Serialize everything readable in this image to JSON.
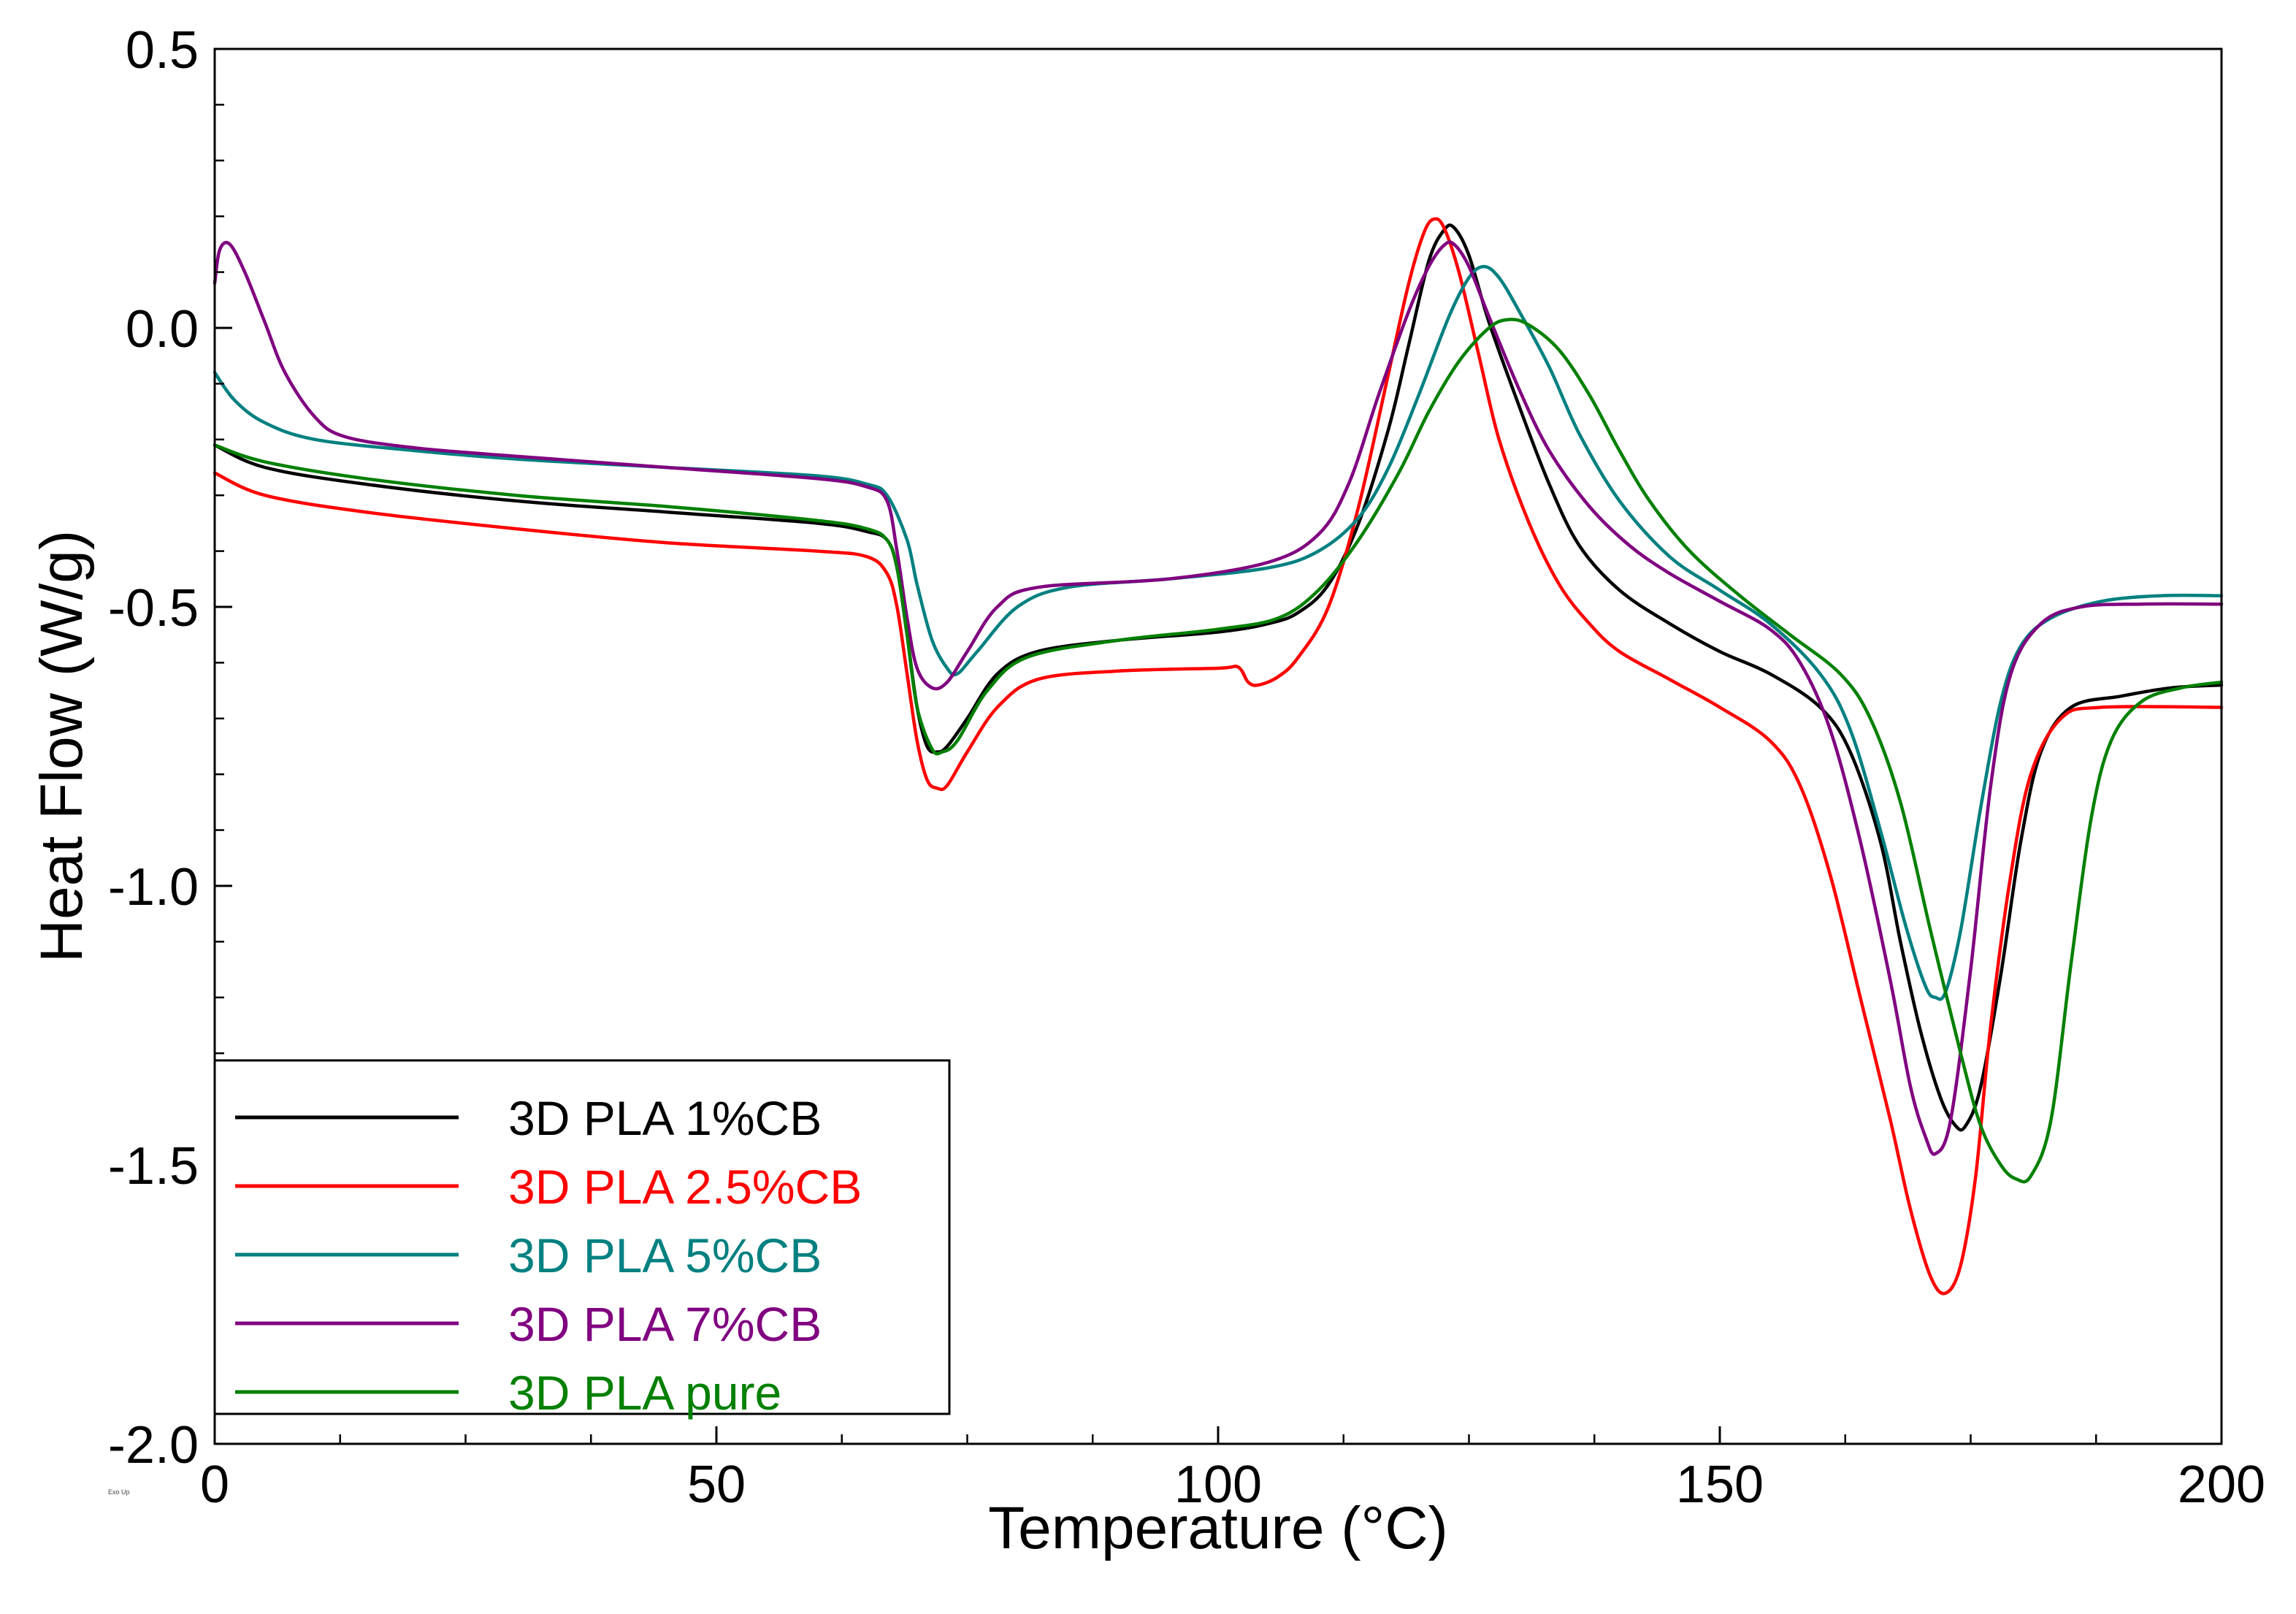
{
  "chart_data": {
    "type": "line",
    "title": "",
    "xlabel": "Temperature (°C)",
    "ylabel": "Heat Flow (W/g)",
    "footer_note": "Exo Up",
    "xlim": [
      0,
      200
    ],
    "ylim": [
      -2.0,
      0.5
    ],
    "xticks": [
      0,
      50,
      100,
      150,
      200
    ],
    "xtick_labels": [
      "0",
      "50",
      "100",
      "150",
      "200"
    ],
    "yticks": [
      0.5,
      0.0,
      -0.5,
      -1.0,
      -1.5,
      -2.0
    ],
    "ytick_labels": [
      "0.5",
      "0.0",
      "-0.5",
      "-1.0",
      "-1.5",
      "-2.0"
    ],
    "legend_position": "bottom-left",
    "series": [
      {
        "name": "3D PLA 1%CB",
        "color": "#000000",
        "points": [
          [
            0,
            -0.21
          ],
          [
            5,
            -0.25
          ],
          [
            15,
            -0.28
          ],
          [
            30,
            -0.31
          ],
          [
            45,
            -0.33
          ],
          [
            60,
            -0.35
          ],
          [
            65,
            -0.365
          ],
          [
            67,
            -0.38
          ],
          [
            68,
            -0.43
          ],
          [
            69,
            -0.55
          ],
          [
            70,
            -0.68
          ],
          [
            71,
            -0.75
          ],
          [
            72,
            -0.76
          ],
          [
            73,
            -0.75
          ],
          [
            75,
            -0.7
          ],
          [
            78,
            -0.62
          ],
          [
            82,
            -0.58
          ],
          [
            90,
            -0.56
          ],
          [
            100,
            -0.545
          ],
          [
            105,
            -0.53
          ],
          [
            108,
            -0.51
          ],
          [
            111,
            -0.46
          ],
          [
            114,
            -0.35
          ],
          [
            117,
            -0.18
          ],
          [
            119,
            -0.03
          ],
          [
            121,
            0.12
          ],
          [
            122.5,
            0.175
          ],
          [
            123.5,
            0.18
          ],
          [
            125,
            0.13
          ],
          [
            127,
            0.01
          ],
          [
            130,
            -0.14
          ],
          [
            133,
            -0.28
          ],
          [
            136,
            -0.39
          ],
          [
            140,
            -0.47
          ],
          [
            145,
            -0.53
          ],
          [
            150,
            -0.58
          ],
          [
            155,
            -0.62
          ],
          [
            160,
            -0.68
          ],
          [
            163,
            -0.76
          ],
          [
            166,
            -0.92
          ],
          [
            168,
            -1.1
          ],
          [
            170,
            -1.26
          ],
          [
            172,
            -1.38
          ],
          [
            173.5,
            -1.43
          ],
          [
            174.5,
            -1.43
          ],
          [
            176,
            -1.36
          ],
          [
            178,
            -1.16
          ],
          [
            180,
            -0.92
          ],
          [
            182,
            -0.76
          ],
          [
            185,
            -0.68
          ],
          [
            190,
            -0.66
          ],
          [
            195,
            -0.645
          ],
          [
            200,
            -0.64
          ]
        ]
      },
      {
        "name": "3D PLA 2.5%CB",
        "color": "#ff0000",
        "points": [
          [
            0,
            -0.26
          ],
          [
            5,
            -0.3
          ],
          [
            15,
            -0.33
          ],
          [
            30,
            -0.36
          ],
          [
            45,
            -0.385
          ],
          [
            60,
            -0.4
          ],
          [
            65,
            -0.41
          ],
          [
            67,
            -0.44
          ],
          [
            68,
            -0.5
          ],
          [
            69,
            -0.62
          ],
          [
            70,
            -0.74
          ],
          [
            71,
            -0.81
          ],
          [
            72,
            -0.825
          ],
          [
            73,
            -0.82
          ],
          [
            75,
            -0.76
          ],
          [
            78,
            -0.68
          ],
          [
            82,
            -0.63
          ],
          [
            90,
            -0.615
          ],
          [
            100,
            -0.61
          ],
          [
            102,
            -0.608
          ],
          [
            103,
            -0.635
          ],
          [
            104,
            -0.64
          ],
          [
            106,
            -0.625
          ],
          [
            108,
            -0.59
          ],
          [
            111,
            -0.5
          ],
          [
            114,
            -0.32
          ],
          [
            117,
            -0.08
          ],
          [
            119,
            0.08
          ],
          [
            120.5,
            0.17
          ],
          [
            121.5,
            0.195
          ],
          [
            122.5,
            0.18
          ],
          [
            124,
            0.1
          ],
          [
            126,
            -0.05
          ],
          [
            128,
            -0.2
          ],
          [
            131,
            -0.35
          ],
          [
            134,
            -0.46
          ],
          [
            137,
            -0.53
          ],
          [
            140,
            -0.58
          ],
          [
            145,
            -0.63
          ],
          [
            150,
            -0.68
          ],
          [
            155,
            -0.74
          ],
          [
            158,
            -0.82
          ],
          [
            161,
            -0.98
          ],
          [
            164,
            -1.2
          ],
          [
            167,
            -1.42
          ],
          [
            169,
            -1.58
          ],
          [
            171,
            -1.7
          ],
          [
            172.5,
            -1.73
          ],
          [
            174,
            -1.68
          ],
          [
            175.5,
            -1.52
          ],
          [
            177,
            -1.25
          ],
          [
            179,
            -0.98
          ],
          [
            181,
            -0.8
          ],
          [
            184,
            -0.7
          ],
          [
            188,
            -0.68
          ],
          [
            200,
            -0.68
          ]
        ]
      },
      {
        "name": "3D PLA 5%CB",
        "color": "#008080",
        "points": [
          [
            0,
            -0.08
          ],
          [
            2,
            -0.13
          ],
          [
            5,
            -0.17
          ],
          [
            10,
            -0.2
          ],
          [
            20,
            -0.22
          ],
          [
            30,
            -0.235
          ],
          [
            45,
            -0.25
          ],
          [
            60,
            -0.265
          ],
          [
            65,
            -0.28
          ],
          [
            67,
            -0.3
          ],
          [
            69,
            -0.38
          ],
          [
            70,
            -0.46
          ],
          [
            71.5,
            -0.56
          ],
          [
            73,
            -0.61
          ],
          [
            74,
            -0.62
          ],
          [
            76,
            -0.58
          ],
          [
            80,
            -0.5
          ],
          [
            85,
            -0.465
          ],
          [
            95,
            -0.45
          ],
          [
            105,
            -0.43
          ],
          [
            110,
            -0.4
          ],
          [
            114,
            -0.34
          ],
          [
            117,
            -0.25
          ],
          [
            120,
            -0.12
          ],
          [
            123,
            0.02
          ],
          [
            125,
            0.09
          ],
          [
            126.5,
            0.11
          ],
          [
            128,
            0.09
          ],
          [
            130,
            0.03
          ],
          [
            133,
            -0.07
          ],
          [
            136,
            -0.19
          ],
          [
            140,
            -0.31
          ],
          [
            145,
            -0.41
          ],
          [
            150,
            -0.47
          ],
          [
            155,
            -0.53
          ],
          [
            160,
            -0.62
          ],
          [
            163,
            -0.72
          ],
          [
            166,
            -0.9
          ],
          [
            168.5,
            -1.07
          ],
          [
            170.5,
            -1.18
          ],
          [
            171.5,
            -1.2
          ],
          [
            172.5,
            -1.19
          ],
          [
            174,
            -1.08
          ],
          [
            176,
            -0.86
          ],
          [
            178,
            -0.67
          ],
          [
            180,
            -0.57
          ],
          [
            183,
            -0.52
          ],
          [
            188,
            -0.49
          ],
          [
            194,
            -0.48
          ],
          [
            200,
            -0.48
          ]
        ]
      },
      {
        "name": "3D PLA 7%CB",
        "color": "#800080",
        "points": [
          [
            0,
            0.08
          ],
          [
            0.5,
            0.14
          ],
          [
            1.5,
            0.15
          ],
          [
            3,
            0.1
          ],
          [
            5,
            0.01
          ],
          [
            7,
            -0.08
          ],
          [
            10,
            -0.16
          ],
          [
            13,
            -0.195
          ],
          [
            20,
            -0.215
          ],
          [
            30,
            -0.23
          ],
          [
            45,
            -0.25
          ],
          [
            60,
            -0.27
          ],
          [
            65,
            -0.285
          ],
          [
            67,
            -0.31
          ],
          [
            68,
            -0.4
          ],
          [
            69,
            -0.52
          ],
          [
            70,
            -0.61
          ],
          [
            71.5,
            -0.645
          ],
          [
            73,
            -0.635
          ],
          [
            75,
            -0.58
          ],
          [
            78,
            -0.5
          ],
          [
            82,
            -0.465
          ],
          [
            95,
            -0.45
          ],
          [
            105,
            -0.42
          ],
          [
            110,
            -0.37
          ],
          [
            113,
            -0.28
          ],
          [
            116,
            -0.12
          ],
          [
            119,
            0.03
          ],
          [
            121,
            0.11
          ],
          [
            122.5,
            0.148
          ],
          [
            123.5,
            0.15
          ],
          [
            125,
            0.11
          ],
          [
            127,
            0.02
          ],
          [
            130,
            -0.11
          ],
          [
            133,
            -0.22
          ],
          [
            137,
            -0.32
          ],
          [
            141,
            -0.39
          ],
          [
            145,
            -0.44
          ],
          [
            150,
            -0.49
          ],
          [
            155,
            -0.54
          ],
          [
            158,
            -0.6
          ],
          [
            161,
            -0.72
          ],
          [
            164,
            -0.92
          ],
          [
            167,
            -1.17
          ],
          [
            169,
            -1.36
          ],
          [
            170.5,
            -1.45
          ],
          [
            171.5,
            -1.48
          ],
          [
            173,
            -1.42
          ],
          [
            175,
            -1.15
          ],
          [
            177,
            -0.82
          ],
          [
            179,
            -0.62
          ],
          [
            182,
            -0.53
          ],
          [
            186,
            -0.5
          ],
          [
            192,
            -0.495
          ],
          [
            200,
            -0.495
          ]
        ]
      },
      {
        "name": "3D PLA pure",
        "color": "#008000",
        "points": [
          [
            0,
            -0.21
          ],
          [
            5,
            -0.24
          ],
          [
            15,
            -0.27
          ],
          [
            30,
            -0.3
          ],
          [
            45,
            -0.32
          ],
          [
            60,
            -0.345
          ],
          [
            65,
            -0.36
          ],
          [
            67,
            -0.38
          ],
          [
            68,
            -0.43
          ],
          [
            69,
            -0.55
          ],
          [
            70,
            -0.68
          ],
          [
            71.5,
            -0.755
          ],
          [
            72.5,
            -0.76
          ],
          [
            74,
            -0.74
          ],
          [
            77,
            -0.65
          ],
          [
            81,
            -0.59
          ],
          [
            90,
            -0.56
          ],
          [
            100,
            -0.54
          ],
          [
            106,
            -0.52
          ],
          [
            110,
            -0.47
          ],
          [
            114,
            -0.38
          ],
          [
            118,
            -0.26
          ],
          [
            121,
            -0.15
          ],
          [
            124,
            -0.06
          ],
          [
            127,
            0.0
          ],
          [
            129,
            0.015
          ],
          [
            131,
            0.005
          ],
          [
            134,
            -0.04
          ],
          [
            137,
            -0.12
          ],
          [
            140,
            -0.22
          ],
          [
            143,
            -0.31
          ],
          [
            147,
            -0.4
          ],
          [
            152,
            -0.48
          ],
          [
            157,
            -0.55
          ],
          [
            162,
            -0.62
          ],
          [
            165,
            -0.7
          ],
          [
            168,
            -0.85
          ],
          [
            171,
            -1.08
          ],
          [
            174,
            -1.3
          ],
          [
            176,
            -1.43
          ],
          [
            178,
            -1.5
          ],
          [
            179.5,
            -1.525
          ],
          [
            181,
            -1.52
          ],
          [
            183,
            -1.42
          ],
          [
            185,
            -1.14
          ],
          [
            187,
            -0.88
          ],
          [
            189,
            -0.74
          ],
          [
            192,
            -0.67
          ],
          [
            196,
            -0.645
          ],
          [
            200,
            -0.635
          ]
        ]
      }
    ]
  }
}
